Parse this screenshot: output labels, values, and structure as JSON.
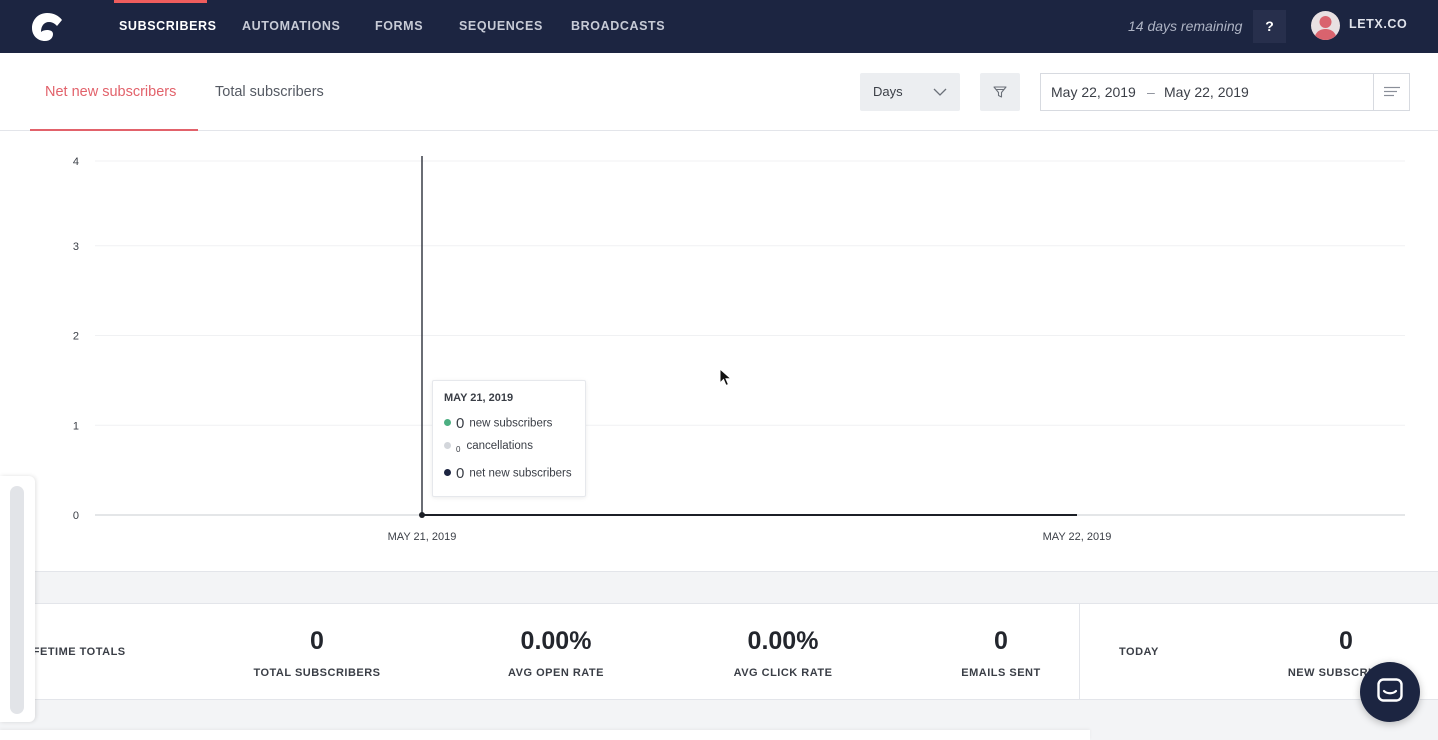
{
  "nav": {
    "items": [
      {
        "label": "SUBSCRIBERS",
        "active": true
      },
      {
        "label": "AUTOMATIONS",
        "active": false
      },
      {
        "label": "FORMS",
        "active": false
      },
      {
        "label": "SEQUENCES",
        "active": false
      },
      {
        "label": "BROADCASTS",
        "active": false
      }
    ],
    "trial": "14 days remaining",
    "help": "?",
    "account": "LETX.CO",
    "accent": "#ee5d5d",
    "background": "#1c2541"
  },
  "subheader": {
    "tabs": [
      {
        "label": "Net new subscribers",
        "active": true
      },
      {
        "label": "Total subscribers",
        "active": false
      }
    ],
    "interval": "Days",
    "date_start": "May 22, 2019",
    "date_separator": "–",
    "date_end": "May 22, 2019"
  },
  "chart_data": {
    "type": "line",
    "x": [
      "MAY 21, 2019",
      "MAY 22, 2019"
    ],
    "ylim": [
      0,
      4
    ],
    "yticks": [
      "0",
      "1",
      "2",
      "3",
      "4"
    ],
    "series": [
      {
        "key": "net",
        "values": [
          0,
          0
        ],
        "color": "#1c1f26"
      }
    ],
    "hover_index": 0,
    "grid": true,
    "tooltip": {
      "date": "MAY 21, 2019",
      "rows": [
        {
          "value": "0",
          "label": "new subscribers",
          "color": "#4caf82"
        },
        {
          "value": "0",
          "label": "cancellations",
          "color": "#d3d6db"
        },
        {
          "value": "0",
          "label": "net new subscribers",
          "color": "#1c2541"
        }
      ]
    }
  },
  "totals": {
    "lifetime_title": "LIFETIME TOTALS",
    "lifetime": [
      {
        "value": "0",
        "label": "TOTAL SUBSCRIBERS"
      },
      {
        "value": "0.00%",
        "label": "AVG OPEN RATE"
      },
      {
        "value": "0.00%",
        "label": "AVG CLICK RATE"
      },
      {
        "value": "0",
        "label": "EMAILS SENT"
      }
    ],
    "today_title": "TODAY",
    "today": [
      {
        "value": "0",
        "label": "NEW SUBSCRIBERS"
      }
    ]
  }
}
